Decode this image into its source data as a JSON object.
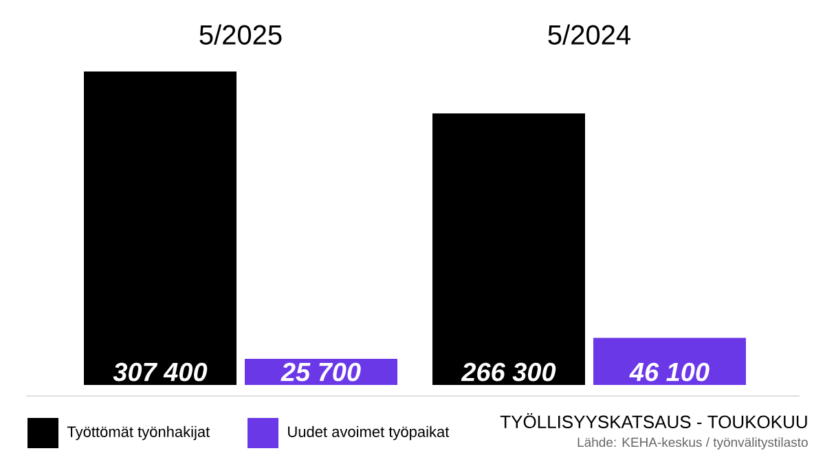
{
  "chart_data": {
    "type": "bar",
    "categories": [
      "5/2025",
      "5/2024"
    ],
    "series": [
      {
        "name": "Työttömät työnhakijat",
        "color": "#000000",
        "values": [
          307400,
          266300
        ],
        "value_labels": [
          "307 400",
          "266 300"
        ]
      },
      {
        "name": "Uudet avoimet työpaikat",
        "color": "#6b38e8",
        "values": [
          25700,
          46100
        ],
        "value_labels": [
          "25 700",
          "46 100"
        ]
      }
    ],
    "title": "TYÖLLISYYSKATSAUS - TOUKOKUU",
    "annotations": [
      "Lähde: KEHA-keskus / työnvälitystilasto"
    ],
    "legend": "bottom"
  }
}
